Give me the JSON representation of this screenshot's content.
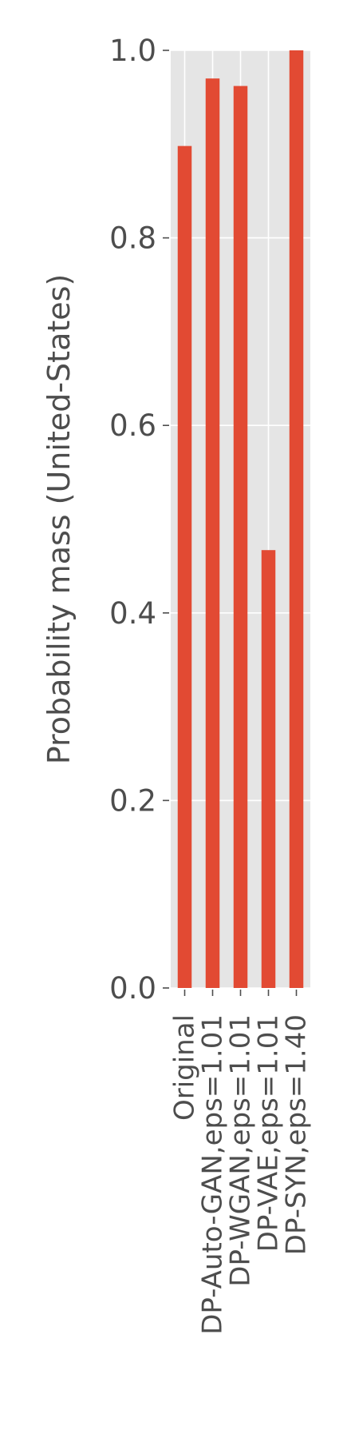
{
  "chart_data": {
    "type": "bar",
    "ylabel": "Probability mass (United-States)",
    "xlabel": "",
    "ylim": [
      0,
      1.0
    ],
    "yticks": [
      0.0,
      0.2,
      0.4,
      0.6,
      0.8,
      1.0
    ],
    "ytick_labels": [
      "0.0",
      "0.2",
      "0.4",
      "0.6",
      "0.8",
      "1.0"
    ],
    "categories": [
      "Original",
      "DP-Auto-GAN,eps=1.01",
      "DP-WGAN,eps=1.01",
      "DP-VAE,eps=1.01",
      "DP-SYN,eps=1.40"
    ],
    "values": [
      0.898,
      0.97,
      0.962,
      0.467,
      1.0
    ],
    "grid": true,
    "style": "ggplot",
    "colors": {
      "bar": "#E24A33",
      "panel_background": "#E5E5E5",
      "grid": "#FFFFFF",
      "text": "#4D4D4D"
    }
  }
}
